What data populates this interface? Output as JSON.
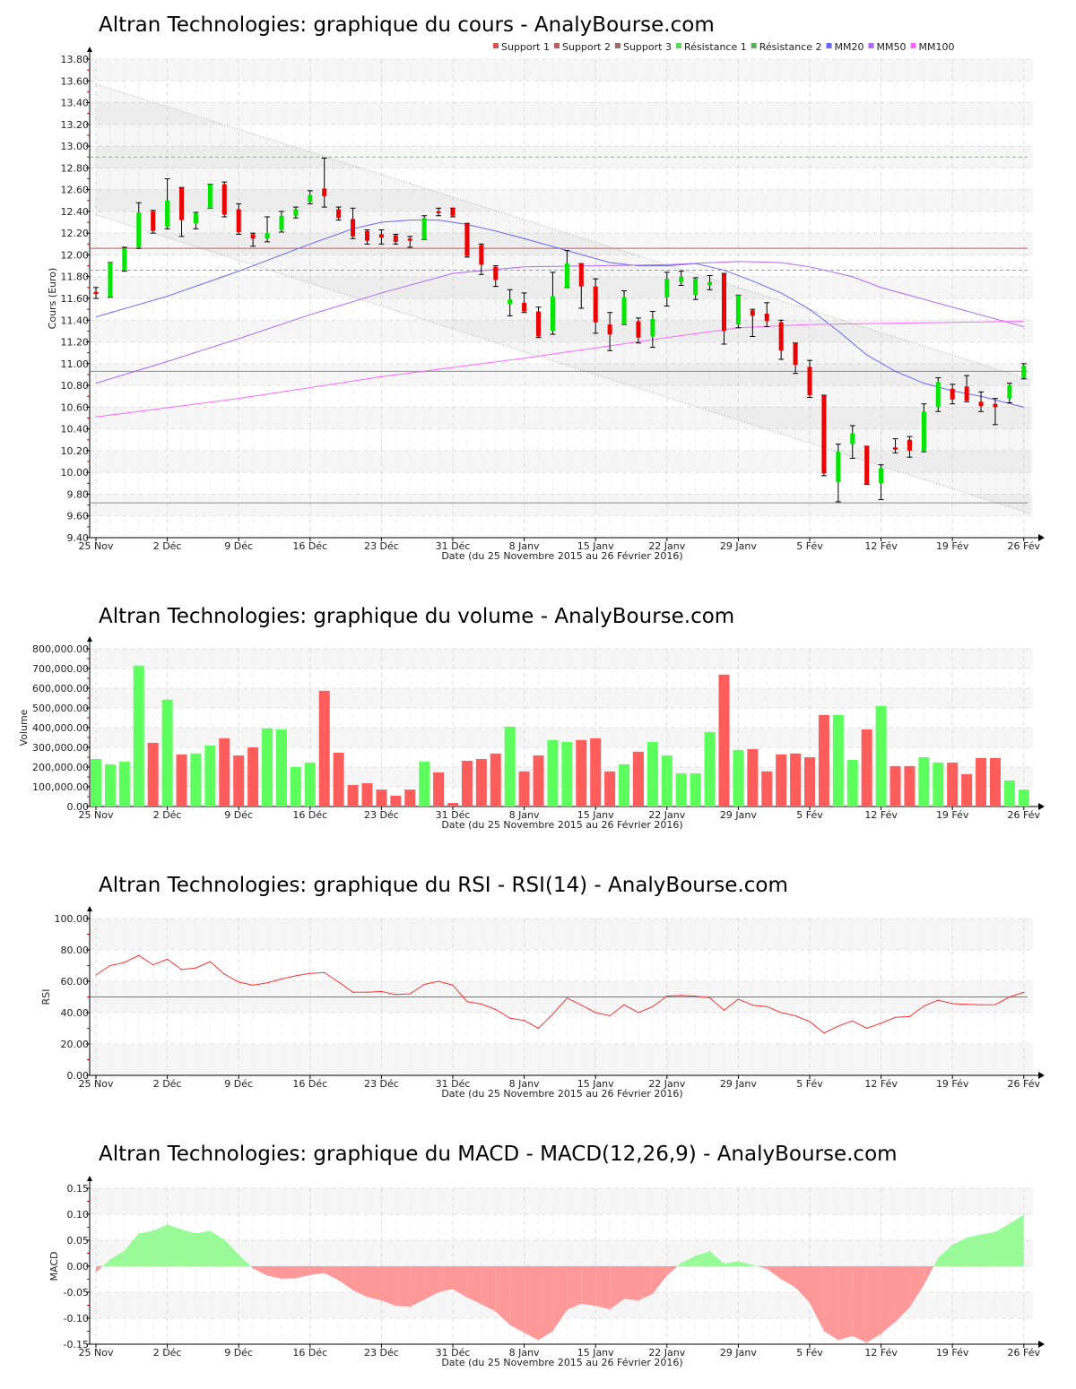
{
  "x_ticks": [
    {
      "label": "25 Nov",
      "index": 0
    },
    {
      "label": "2 Déc",
      "index": 5
    },
    {
      "label": "9 Déc",
      "index": 10
    },
    {
      "label": "16 Déc",
      "index": 15
    },
    {
      "label": "23 Déc",
      "index": 20
    },
    {
      "label": "31 Déc",
      "index": 25
    },
    {
      "label": "8 Janv",
      "index": 30
    },
    {
      "label": "15 Janv",
      "index": 35
    },
    {
      "label": "22 Janv",
      "index": 40
    },
    {
      "label": "29 Janv",
      "index": 45
    },
    {
      "label": "5 Fév",
      "index": 50
    },
    {
      "label": "12 Fév",
      "index": 55
    },
    {
      "label": "19 Fév",
      "index": 60
    },
    {
      "label": "26 Fév",
      "index": 65
    }
  ],
  "chart_data": [
    {
      "type": "candlestick",
      "title": "Altran Technologies: graphique du cours - AnalyBourse.com",
      "xlabel": "Date (du 25 Novembre 2015 au 26 Février 2016)",
      "ylabel": "Cours (Euro)",
      "ylim": [
        9.4,
        13.8
      ],
      "ystep": 0.2,
      "ydecimals": 2,
      "grid": true,
      "legend_position": "top-right",
      "legend": [
        {
          "label": "Support 1",
          "color": "#d9534f"
        },
        {
          "label": "Support 2",
          "color": "#b5615e"
        },
        {
          "label": "Support 3",
          "color": "#a06a68"
        },
        {
          "label": "Résistance 1",
          "color": "#5cd65c"
        },
        {
          "label": "Résistance 2",
          "color": "#5cad5c"
        },
        {
          "label": "MM20",
          "color": "#6666ff"
        },
        {
          "label": "MM50",
          "color": "#b266ff"
        },
        {
          "label": "MM100",
          "color": "#ff66ff"
        }
      ],
      "ohlc": [
        [
          11.66,
          11.7,
          11.6,
          11.64
        ],
        [
          11.61,
          11.93,
          11.61,
          11.93
        ],
        [
          11.86,
          12.07,
          11.85,
          12.06
        ],
        [
          12.07,
          12.48,
          12.06,
          12.39
        ],
        [
          12.4,
          12.41,
          12.2,
          12.22
        ],
        [
          12.26,
          12.7,
          12.24,
          12.5
        ],
        [
          12.62,
          12.62,
          12.17,
          12.32
        ],
        [
          12.29,
          12.39,
          12.24,
          12.38
        ],
        [
          12.43,
          12.65,
          12.43,
          12.65
        ],
        [
          12.65,
          12.67,
          12.35,
          12.37
        ],
        [
          12.42,
          12.47,
          12.19,
          12.21
        ],
        [
          12.19,
          12.2,
          12.08,
          12.15
        ],
        [
          12.15,
          12.35,
          12.12,
          12.2
        ],
        [
          12.23,
          12.4,
          12.21,
          12.36
        ],
        [
          12.36,
          12.44,
          12.34,
          12.42
        ],
        [
          12.49,
          12.59,
          12.47,
          12.55
        ],
        [
          12.61,
          12.89,
          12.44,
          12.54
        ],
        [
          12.42,
          12.44,
          12.32,
          12.34
        ],
        [
          12.33,
          12.43,
          12.15,
          12.17
        ],
        [
          12.22,
          12.23,
          12.1,
          12.13
        ],
        [
          12.19,
          12.23,
          12.1,
          12.16
        ],
        [
          12.18,
          12.19,
          12.1,
          12.12
        ],
        [
          12.15,
          12.17,
          12.07,
          12.13
        ],
        [
          12.14,
          12.36,
          12.14,
          12.34
        ],
        [
          12.4,
          12.43,
          12.36,
          12.39
        ],
        [
          12.43,
          12.43,
          12.35,
          12.36
        ],
        [
          12.29,
          12.29,
          11.98,
          11.99
        ],
        [
          12.09,
          12.1,
          11.82,
          11.91
        ],
        [
          11.89,
          11.9,
          11.71,
          11.77
        ],
        [
          11.55,
          11.68,
          11.44,
          11.59
        ],
        [
          11.56,
          11.65,
          11.47,
          11.48
        ],
        [
          11.48,
          11.52,
          11.24,
          11.25
        ],
        [
          11.3,
          11.84,
          11.27,
          11.62
        ],
        [
          11.7,
          12.04,
          11.7,
          11.92
        ],
        [
          11.92,
          11.92,
          11.51,
          11.71
        ],
        [
          11.71,
          11.78,
          11.28,
          11.38
        ],
        [
          11.36,
          11.47,
          11.12,
          11.27
        ],
        [
          11.36,
          11.67,
          11.36,
          11.61
        ],
        [
          11.39,
          11.42,
          11.19,
          11.24
        ],
        [
          11.25,
          11.48,
          11.15,
          11.41
        ],
        [
          11.61,
          11.84,
          11.53,
          11.78
        ],
        [
          11.75,
          11.85,
          11.72,
          11.8
        ],
        [
          11.63,
          11.79,
          11.59,
          11.78
        ],
        [
          11.72,
          11.81,
          11.68,
          11.75
        ],
        [
          11.83,
          11.83,
          11.18,
          11.3
        ],
        [
          11.36,
          11.63,
          11.33,
          11.63
        ],
        [
          11.49,
          11.5,
          11.25,
          11.44
        ],
        [
          11.46,
          11.56,
          11.34,
          11.39
        ],
        [
          11.38,
          11.4,
          11.04,
          11.12
        ],
        [
          11.19,
          11.19,
          10.91,
          10.99
        ],
        [
          10.97,
          11.03,
          10.69,
          10.71
        ],
        [
          10.71,
          10.71,
          9.97,
          9.99
        ],
        [
          9.91,
          10.26,
          9.73,
          10.19
        ],
        [
          10.26,
          10.43,
          10.13,
          10.36
        ],
        [
          10.24,
          10.24,
          9.89,
          9.89
        ],
        [
          9.9,
          10.07,
          9.75,
          10.04
        ],
        [
          10.23,
          10.31,
          10.18,
          10.21
        ],
        [
          10.3,
          10.33,
          10.14,
          10.2
        ],
        [
          10.2,
          10.63,
          10.19,
          10.56
        ],
        [
          10.6,
          10.87,
          10.56,
          10.83
        ],
        [
          10.77,
          10.81,
          10.63,
          10.67
        ],
        [
          10.79,
          10.89,
          10.65,
          10.66
        ],
        [
          10.65,
          10.74,
          10.56,
          10.61
        ],
        [
          10.63,
          10.68,
          10.44,
          10.6
        ],
        [
          10.68,
          10.82,
          10.64,
          10.8
        ],
        [
          10.87,
          11.0,
          10.86,
          10.98
        ]
      ],
      "hlines": [
        {
          "name": "resistance-1",
          "value": 12.9,
          "color": "#5cd65c",
          "dash": true
        },
        {
          "name": "support-1",
          "value": 12.06,
          "color": "#c85a5a",
          "dash": false
        },
        {
          "name": "resistance-2",
          "value": 11.86,
          "color": "#5cc85c",
          "dash": true
        },
        {
          "name": "support-2",
          "value": 10.93,
          "color": "#8a8a8a",
          "dash": false
        },
        {
          "name": "support-3",
          "value": 9.72,
          "color": "#8a8a8a",
          "dash": false
        }
      ],
      "trend_channel": {
        "upper": [
          [
            0,
            13.57
          ],
          [
            65.5,
            10.85
          ]
        ],
        "lower": [
          [
            0,
            12.37
          ],
          [
            65.5,
            9.62
          ]
        ]
      },
      "moving_averages": [
        {
          "name": "MM20",
          "color": "#6666ff",
          "points": [
            [
              0,
              11.43
            ],
            [
              5,
              11.62
            ],
            [
              10,
              11.85
            ],
            [
              15,
              12.1
            ],
            [
              18,
              12.24
            ],
            [
              20,
              12.3
            ],
            [
              22,
              12.32
            ],
            [
              24,
              12.32
            ],
            [
              26,
              12.28
            ],
            [
              28,
              12.22
            ],
            [
              30,
              12.15
            ],
            [
              33,
              12.04
            ],
            [
              36,
              11.93
            ],
            [
              38,
              11.9
            ],
            [
              40,
              11.9
            ],
            [
              42,
              11.92
            ],
            [
              44,
              11.86
            ],
            [
              46,
              11.76
            ],
            [
              48,
              11.65
            ],
            [
              50,
              11.5
            ],
            [
              52,
              11.3
            ],
            [
              54,
              11.08
            ],
            [
              56,
              10.93
            ],
            [
              58,
              10.82
            ],
            [
              60,
              10.75
            ],
            [
              62,
              10.7
            ],
            [
              65,
              10.6
            ]
          ]
        },
        {
          "name": "MM50",
          "color": "#b266ff",
          "points": [
            [
              0,
              10.82
            ],
            [
              5,
              11.02
            ],
            [
              10,
              11.23
            ],
            [
              15,
              11.45
            ],
            [
              20,
              11.65
            ],
            [
              25,
              11.83
            ],
            [
              30,
              11.89
            ],
            [
              35,
              11.9
            ],
            [
              40,
              11.91
            ],
            [
              45,
              11.94
            ],
            [
              48,
              11.93
            ],
            [
              50,
              11.89
            ],
            [
              53,
              11.8
            ],
            [
              55,
              11.7
            ],
            [
              60,
              11.52
            ],
            [
              65,
              11.34
            ]
          ]
        },
        {
          "name": "MM100",
          "color": "#ff66ff",
          "points": [
            [
              0,
              10.51
            ],
            [
              10,
              10.68
            ],
            [
              20,
              10.88
            ],
            [
              30,
              11.05
            ],
            [
              40,
              11.24
            ],
            [
              45,
              11.33
            ],
            [
              50,
              11.36
            ],
            [
              55,
              11.37
            ],
            [
              60,
              11.38
            ],
            [
              65,
              11.39
            ]
          ]
        }
      ]
    },
    {
      "type": "bar",
      "title": "Altran Technologies: graphique du volume - AnalyBourse.com",
      "xlabel": "Date (du 25 Novembre 2015 au 26 Février 2016)",
      "ylabel": "Volume",
      "ylim": [
        0,
        800000
      ],
      "ystep": 100000,
      "grid": true,
      "values": [
        241000,
        214000,
        228000,
        715000,
        323000,
        542000,
        264000,
        269000,
        310000,
        346000,
        259000,
        300000,
        396000,
        391000,
        200000,
        223000,
        587000,
        273000,
        109000,
        118000,
        86000,
        55000,
        86000,
        228000,
        173000,
        18000,
        232000,
        241000,
        269000,
        405000,
        178000,
        259000,
        337000,
        328000,
        337000,
        346000,
        178000,
        214000,
        278000,
        328000,
        259000,
        168000,
        168000,
        378000,
        669000,
        287000,
        291000,
        178000,
        264000,
        269000,
        250000,
        464000,
        464000,
        237000,
        391000,
        510000,
        205000,
        205000,
        250000,
        223000,
        223000,
        164000,
        246000,
        246000,
        132000,
        86000
      ],
      "direction": [
        "up",
        "up",
        "up",
        "up",
        "down",
        "up",
        "down",
        "up",
        "up",
        "down",
        "down",
        "down",
        "up",
        "up",
        "up",
        "up",
        "down",
        "down",
        "down",
        "down",
        "down",
        "down",
        "down",
        "up",
        "down",
        "down",
        "down",
        "down",
        "down",
        "up",
        "down",
        "down",
        "up",
        "up",
        "down",
        "down",
        "down",
        "up",
        "down",
        "up",
        "up",
        "up",
        "up",
        "up",
        "down",
        "up",
        "down",
        "down",
        "down",
        "down",
        "down",
        "down",
        "up",
        "up",
        "down",
        "up",
        "down",
        "down",
        "up",
        "up",
        "down",
        "down",
        "down",
        "down",
        "up",
        "up"
      ]
    },
    {
      "type": "line",
      "title": "Altran Technologies: graphique du RSI - RSI(14) - AnalyBourse.com",
      "xlabel": "Date (du 25 Novembre 2015 au 26 Février 2016)",
      "ylabel": "RSI",
      "ylim": [
        0,
        100
      ],
      "ystep": 20,
      "reference_line": 50,
      "grid": true,
      "values": [
        64,
        70,
        72,
        76.5,
        70.5,
        74,
        67.5,
        68.5,
        72.5,
        64.5,
        59.5,
        57.5,
        59,
        61.5,
        63.5,
        65,
        65.5,
        59.5,
        53,
        53,
        53.5,
        51.5,
        52,
        58,
        60,
        57.5,
        47,
        45.5,
        42,
        36.5,
        35,
        30,
        39,
        49.3,
        44.8,
        40,
        38,
        45,
        40,
        43.8,
        50.5,
        51,
        50.5,
        49.5,
        41.5,
        48.6,
        44.8,
        43.8,
        40,
        38,
        34.3,
        27,
        31.4,
        34.7,
        30,
        33.3,
        37,
        37.5,
        44.2,
        48,
        45.7,
        45.3,
        45,
        45.1,
        50,
        53
      ]
    },
    {
      "type": "area",
      "title": "Altran Technologies: graphique du MACD - MACD(12,26,9) - AnalyBourse.com",
      "xlabel": "Date (du 25 Novembre 2015 au 26 Février 2016)",
      "ylabel": "MACD",
      "ylim": [
        -0.15,
        0.15
      ],
      "ystep": 0.05,
      "grid": true,
      "values": [
        -0.012,
        0.013,
        0.03,
        0.063,
        0.068,
        0.08,
        0.071,
        0.063,
        0.068,
        0.051,
        0.022,
        -0.004,
        -0.018,
        -0.024,
        -0.023,
        -0.017,
        -0.013,
        -0.027,
        -0.046,
        -0.059,
        -0.066,
        -0.076,
        -0.078,
        -0.064,
        -0.05,
        -0.044,
        -0.06,
        -0.073,
        -0.087,
        -0.113,
        -0.128,
        -0.142,
        -0.125,
        -0.084,
        -0.072,
        -0.076,
        -0.083,
        -0.063,
        -0.066,
        -0.053,
        -0.018,
        0.006,
        0.02,
        0.029,
        0.005,
        0.01,
        0.002,
        -0.005,
        -0.025,
        -0.041,
        -0.07,
        -0.125,
        -0.142,
        -0.134,
        -0.147,
        -0.13,
        -0.107,
        -0.079,
        -0.036,
        0.016,
        0.041,
        0.055,
        0.061,
        0.066,
        0.082,
        0.099
      ]
    }
  ]
}
